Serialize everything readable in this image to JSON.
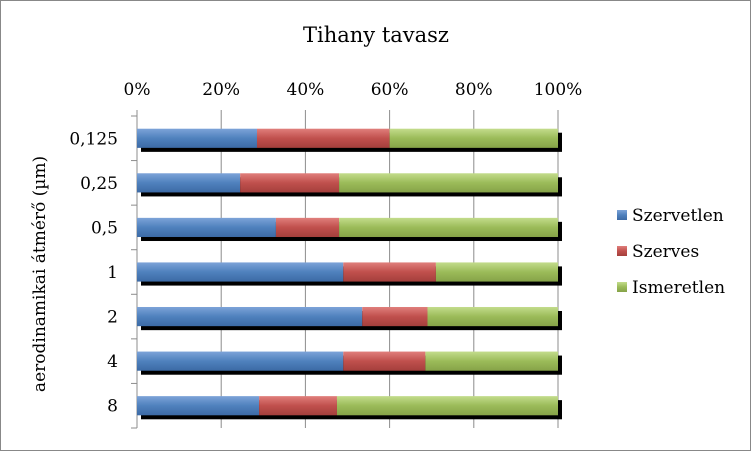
{
  "chart_data": {
    "type": "bar",
    "orientation": "horizontal",
    "stacked": "percent",
    "title": "Tihany tavasz",
    "ylabel": "aerodinamikai átmérő (µm)",
    "xlabel": "",
    "xlim": [
      0,
      100
    ],
    "x_ticks": [
      "0%",
      "20%",
      "40%",
      "60%",
      "80%",
      "100%"
    ],
    "x_axis_position": "top",
    "categories": [
      "0,125",
      "0,25",
      "0,5",
      "1",
      "2",
      "4",
      "8"
    ],
    "series": [
      {
        "name": "Szervetlen",
        "color": "#4f81bd",
        "values": [
          28.5,
          24.5,
          33,
          49,
          53.5,
          49,
          29
        ]
      },
      {
        "name": "Szerves",
        "color": "#c0504d",
        "values": [
          31.5,
          23.5,
          15,
          22,
          15.5,
          19.5,
          18.5
        ]
      },
      {
        "name": "Ismeretlen",
        "color": "#9bbb59",
        "values": [
          40,
          52,
          52,
          29,
          31,
          31.5,
          52.5
        ]
      }
    ],
    "legend_position": "right",
    "grid": true
  }
}
